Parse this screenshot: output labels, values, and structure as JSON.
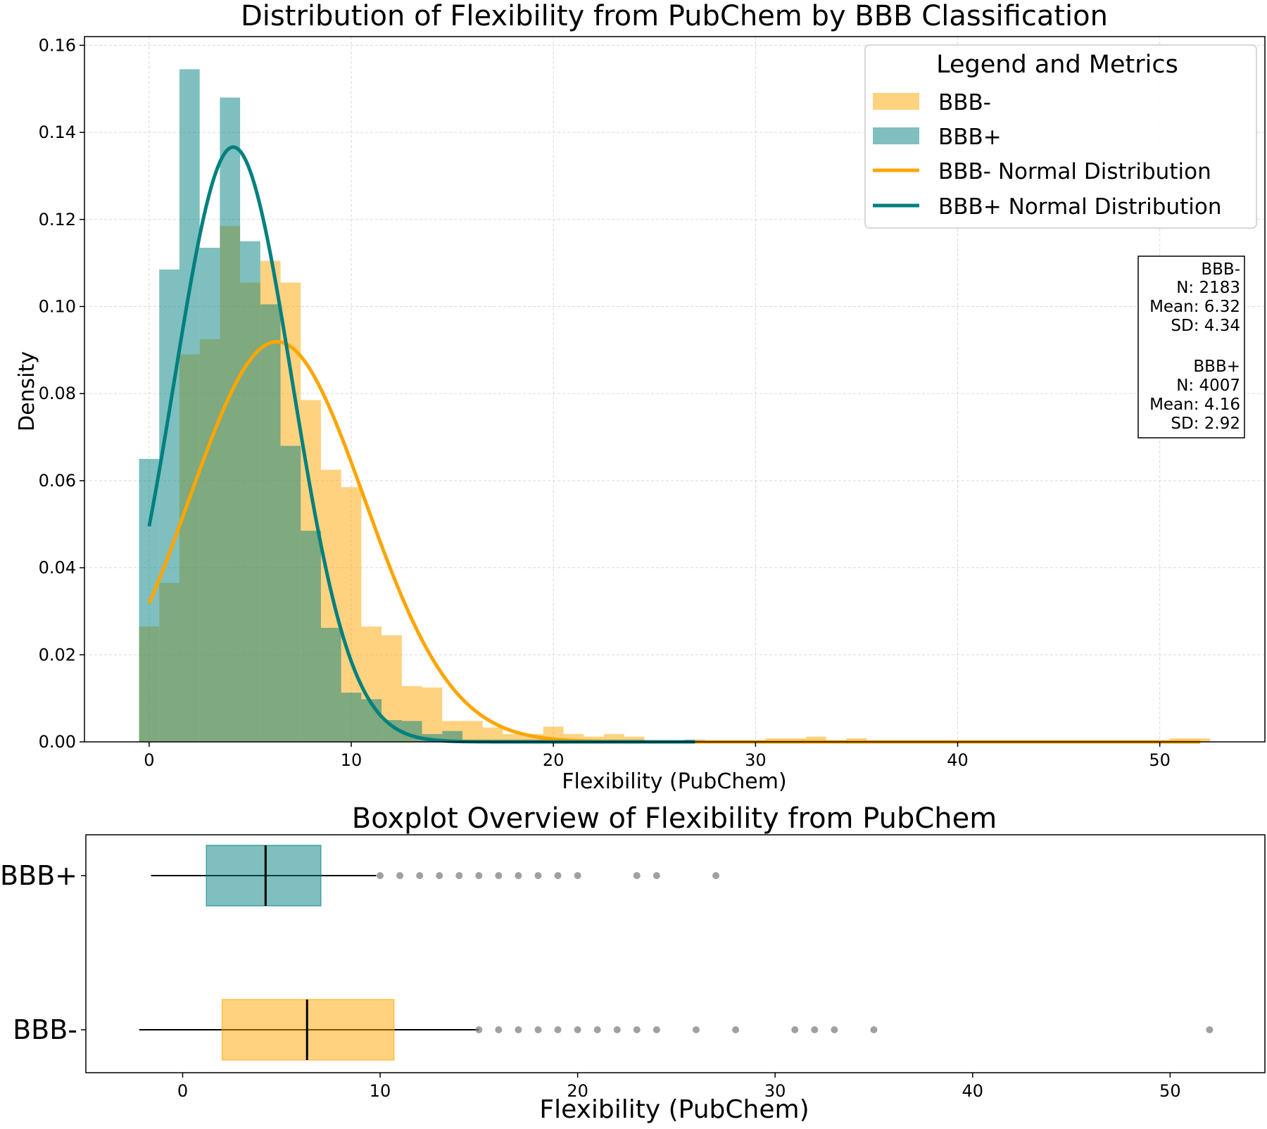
{
  "chart_data": [
    {
      "type": "histogram",
      "title": "Distribution of Flexibility from PubChem by BBB Classification",
      "xlabel": "Flexibility (PubChem)",
      "ylabel": "Density",
      "xlim": [
        -3.2,
        55.2
      ],
      "ylim": [
        0,
        0.162
      ],
      "xticks": [
        0,
        10,
        20,
        30,
        40,
        50
      ],
      "yticks": [
        0.0,
        0.02,
        0.04,
        0.06,
        0.08,
        0.1,
        0.12,
        0.14,
        0.16
      ],
      "yticks_labels": [
        "0.00",
        "0.02",
        "0.04",
        "0.06",
        "0.08",
        "0.10",
        "0.12",
        "0.14",
        "0.16"
      ],
      "grid": true,
      "legend": {
        "title": "Legend and Metrics",
        "placement": "upper right",
        "entries": [
          "BBB-",
          "BBB+",
          "BBB- Normal Distribution",
          "BBB+ Normal Distribution"
        ]
      },
      "colors": {
        "BBB-": "#FFA500",
        "BBB+": "#008080",
        "overlap": "#80A47A"
      },
      "metrics_text": [
        "BBB-",
        "N: 2183",
        "Mean: 6.32",
        "SD: 4.34",
        "",
        "BBB+",
        "N: 4007",
        "Mean: 4.16",
        "SD: 2.92"
      ],
      "bin_edges": [
        -0.5,
        0.5,
        1.5,
        2.5,
        3.5,
        4.5,
        5.5,
        6.5,
        7.5,
        8.5,
        9.5,
        10.5,
        11.5,
        12.5,
        13.5,
        14.5,
        15.5,
        16.5,
        17.5,
        18.5,
        19.5,
        20.5,
        21.5,
        22.5,
        23.5,
        24.5,
        25.5,
        26.5,
        27.5,
        28.5,
        29.5,
        30.5,
        31.5,
        32.5,
        33.5,
        34.5,
        35.5,
        36.5,
        37.5,
        38.5,
        39.5,
        40.5,
        41.5,
        42.5,
        43.5,
        44.5,
        45.5,
        46.5,
        47.5,
        48.5,
        49.5,
        50.5,
        51.5,
        52.5
      ],
      "series": [
        {
          "name": "BBB-",
          "density": [
            0.0265,
            0.0365,
            0.089,
            0.0925,
            0.1185,
            0.1055,
            0.1105,
            0.1055,
            0.0785,
            0.0625,
            0.0585,
            0.0265,
            0.0245,
            0.0128,
            0.0125,
            0.0048,
            0.0048,
            0.0033,
            0.0018,
            0.0018,
            0.0035,
            0.0018,
            0.0012,
            0.0018,
            0.0012,
            0.0004,
            0.0004,
            0.0004,
            0.0004,
            0.0004,
            0.0004,
            0.0008,
            0.0008,
            0.0012,
            0.0004,
            0.0008,
            0.0004,
            0.0004,
            0.0004,
            0.0004,
            0.0004,
            0.0004,
            0.0004,
            0.0004,
            0.0004,
            0.0004,
            0.0004,
            0.0004,
            0.0004,
            0.0004,
            0.0004,
            0.0008,
            0.0008
          ]
        },
        {
          "name": "BBB+",
          "density": [
            0.065,
            0.1085,
            0.1545,
            0.1135,
            0.148,
            0.115,
            0.1005,
            0.068,
            0.0485,
            0.0262,
            0.0113,
            0.0098,
            0.005,
            0.0048,
            0.0018,
            0.0025,
            0.0005,
            0.0005,
            0.0005,
            0.0005,
            0.0005,
            0.0,
            0.0,
            0.0005,
            0.0005,
            0.0,
            0.0,
            0.0005,
            0,
            0,
            0,
            0,
            0,
            0,
            0,
            0,
            0,
            0,
            0,
            0,
            0,
            0,
            0,
            0,
            0,
            0,
            0,
            0,
            0,
            0,
            0,
            0,
            0
          ]
        }
      ],
      "normal_curves": [
        {
          "name": "BBB- Normal Distribution",
          "mean": 6.32,
          "sd": 4.34,
          "x_range": [
            0,
            52
          ]
        },
        {
          "name": "BBB+ Normal Distribution",
          "mean": 4.16,
          "sd": 2.92,
          "x_range": [
            0,
            27
          ]
        }
      ]
    },
    {
      "type": "boxplot",
      "title": "Boxplot Overview of Flexibility from PubChem",
      "xlabel": "Flexibility (PubChem)",
      "xlim": [
        -4.9,
        54.8
      ],
      "xticks": [
        0,
        10,
        20,
        30,
        40,
        50
      ],
      "categories": [
        "BBB+",
        "BBB-"
      ],
      "boxes": [
        {
          "name": "BBB+",
          "q1": 1.2,
          "median": 4.2,
          "q3": 7.0,
          "whisker_low": -1.6,
          "whisker_high": 9.8,
          "outliers": [
            10,
            11,
            12,
            13,
            14,
            15,
            16,
            17,
            18,
            19,
            20,
            23,
            24,
            27
          ]
        },
        {
          "name": "BBB-",
          "q1": 2.0,
          "median": 6.3,
          "q3": 10.7,
          "whisker_low": -2.2,
          "whisker_high": 15.0,
          "outliers": [
            15,
            16,
            17,
            18,
            19,
            20,
            21,
            22,
            23,
            24,
            26,
            28,
            31,
            32,
            33,
            35,
            52
          ]
        }
      ]
    }
  ]
}
